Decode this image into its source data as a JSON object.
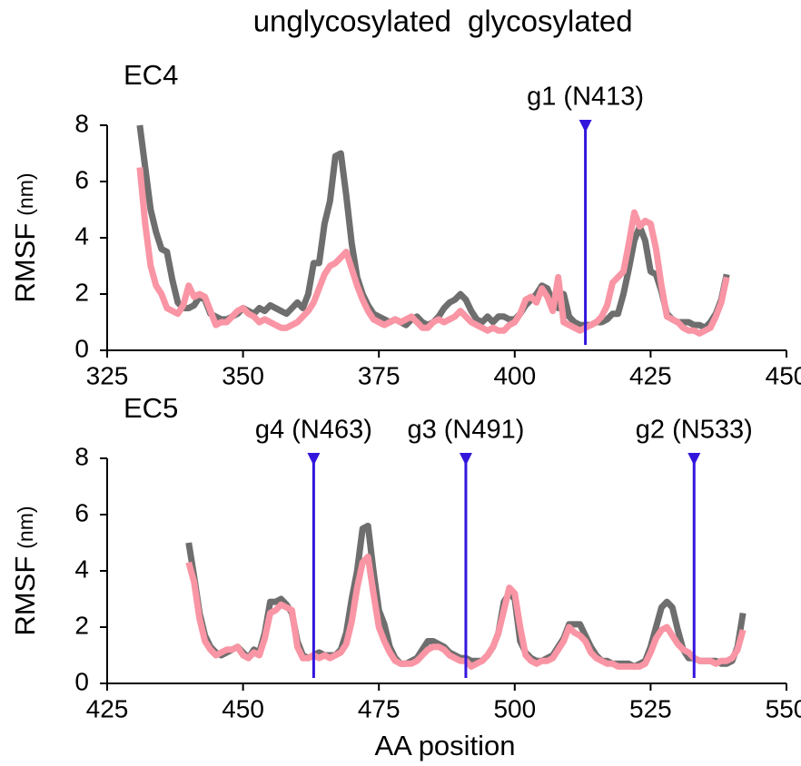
{
  "chart_data": [
    {
      "type": "line",
      "title": "EC4",
      "y_label": "RMSF",
      "y_unit": "(nm)",
      "xlim": [
        325,
        450
      ],
      "xticks": [
        325,
        350,
        375,
        400,
        425,
        450
      ],
      "ylim": [
        0,
        8
      ],
      "yticks": [
        0,
        2,
        4,
        6,
        8
      ],
      "marker_color": "#3316dc",
      "markers": [
        {
          "label": "g1 (N413)",
          "x": 413
        }
      ],
      "x": [
        331,
        332,
        333,
        334,
        335,
        336,
        337,
        338,
        339,
        340,
        341,
        342,
        343,
        344,
        345,
        346,
        347,
        348,
        349,
        350,
        351,
        352,
        353,
        354,
        355,
        356,
        357,
        358,
        359,
        360,
        361,
        362,
        363,
        364,
        365,
        366,
        367,
        368,
        369,
        370,
        371,
        372,
        373,
        374,
        375,
        376,
        377,
        378,
        379,
        380,
        381,
        382,
        383,
        384,
        385,
        386,
        387,
        388,
        389,
        390,
        391,
        392,
        393,
        394,
        395,
        396,
        397,
        398,
        399,
        400,
        401,
        402,
        403,
        404,
        405,
        406,
        407,
        408,
        409,
        410,
        411,
        412,
        413,
        414,
        415,
        416,
        417,
        418,
        419,
        420,
        421,
        422,
        423,
        424,
        425,
        426,
        427,
        428,
        429,
        430,
        431,
        432,
        433,
        434,
        435,
        436,
        437,
        438,
        439
      ],
      "series": [
        {
          "name": "unglycosylated",
          "color": "#f995a4",
          "values": [
            6.5,
            4.5,
            3.0,
            2.3,
            2.0,
            1.5,
            1.4,
            1.3,
            1.6,
            2.3,
            1.9,
            2.0,
            1.9,
            1.4,
            0.9,
            1.0,
            1.0,
            1.2,
            1.4,
            1.5,
            1.3,
            1.2,
            1.0,
            1.1,
            1.0,
            0.9,
            0.8,
            0.8,
            0.9,
            1.0,
            1.2,
            1.4,
            1.7,
            2.2,
            2.7,
            3.0,
            3.1,
            3.3,
            3.5,
            2.9,
            2.3,
            1.8,
            1.4,
            1.1,
            1.0,
            0.9,
            1.0,
            1.1,
            1.0,
            1.1,
            1.2,
            1.0,
            0.8,
            0.8,
            1.0,
            1.1,
            1.0,
            1.1,
            1.2,
            1.4,
            1.2,
            1.0,
            0.9,
            0.8,
            0.7,
            0.8,
            0.7,
            0.7,
            0.9,
            1.0,
            1.3,
            1.8,
            1.9,
            1.7,
            2.2,
            1.9,
            1.4,
            2.6,
            1.0,
            0.9,
            0.8,
            0.7,
            0.8,
            0.9,
            1.0,
            1.2,
            1.6,
            2.4,
            2.6,
            2.8,
            3.8,
            4.9,
            4.4,
            4.6,
            4.5,
            3.6,
            2.3,
            1.2,
            1.1,
            1.0,
            0.8,
            0.7,
            0.7,
            0.6,
            0.7,
            0.8,
            1.2,
            1.7,
            2.6
          ]
        },
        {
          "name": "glycosylated",
          "color": "#6e6e6e",
          "values": [
            8.0,
            6.5,
            5.0,
            4.2,
            3.6,
            3.5,
            2.5,
            1.7,
            1.5,
            1.5,
            1.6,
            1.9,
            1.8,
            1.3,
            1.2,
            1.1,
            1.1,
            1.2,
            1.3,
            1.5,
            1.4,
            1.3,
            1.5,
            1.4,
            1.6,
            1.5,
            1.4,
            1.3,
            1.5,
            1.7,
            1.5,
            2.0,
            3.1,
            3.1,
            4.5,
            5.3,
            6.9,
            7.0,
            5.5,
            3.8,
            2.6,
            2.0,
            1.6,
            1.3,
            1.2,
            1.1,
            1.0,
            1.1,
            1.0,
            0.9,
            1.1,
            1.2,
            1.0,
            0.9,
            1.0,
            1.2,
            1.5,
            1.7,
            1.8,
            2.0,
            1.8,
            1.4,
            1.1,
            1.0,
            1.2,
            1.0,
            1.2,
            1.2,
            1.1,
            1.1,
            1.3,
            1.6,
            1.8,
            2.0,
            2.3,
            2.2,
            1.7,
            1.5,
            2.0,
            1.2,
            1.0,
            0.9,
            0.9,
            0.9,
            1.0,
            1.0,
            1.1,
            1.3,
            1.3,
            2.0,
            2.9,
            3.9,
            4.4,
            3.9,
            2.8,
            2.7,
            2.1,
            1.3,
            1.1,
            1.0,
            1.0,
            1.0,
            0.9,
            0.9,
            0.8,
            1.0,
            1.3,
            1.8,
            2.7
          ]
        }
      ]
    },
    {
      "type": "line",
      "title": "EC5",
      "y_label": "RMSF",
      "y_unit": "(nm)",
      "x_label": "AA position",
      "xlim": [
        425,
        550
      ],
      "xticks": [
        425,
        450,
        475,
        500,
        525,
        550
      ],
      "ylim": [
        0,
        8
      ],
      "yticks": [
        0,
        2,
        4,
        6,
        8
      ],
      "marker_color": "#3316dc",
      "markers": [
        {
          "label": "g4 (N463)",
          "x": 463
        },
        {
          "label": "g3 (N491)",
          "x": 491
        },
        {
          "label": "g2 (N533)",
          "x": 533
        }
      ],
      "x": [
        440,
        441,
        442,
        443,
        444,
        445,
        446,
        447,
        448,
        449,
        450,
        451,
        452,
        453,
        454,
        455,
        456,
        457,
        458,
        459,
        460,
        461,
        462,
        463,
        464,
        465,
        466,
        467,
        468,
        469,
        470,
        471,
        472,
        473,
        474,
        475,
        476,
        477,
        478,
        479,
        480,
        481,
        482,
        483,
        484,
        485,
        486,
        487,
        488,
        489,
        490,
        491,
        492,
        493,
        494,
        495,
        496,
        497,
        498,
        499,
        500,
        501,
        502,
        503,
        504,
        505,
        506,
        507,
        508,
        509,
        510,
        511,
        512,
        513,
        514,
        515,
        516,
        517,
        518,
        519,
        520,
        521,
        522,
        523,
        524,
        525,
        526,
        527,
        528,
        529,
        530,
        531,
        532,
        533,
        534,
        535,
        536,
        537,
        538,
        539,
        540,
        541,
        542
      ],
      "series": [
        {
          "name": "unglycosylated",
          "color": "#f995a4",
          "values": [
            4.3,
            3.6,
            2.3,
            1.5,
            1.2,
            1.0,
            1.1,
            1.2,
            1.2,
            1.3,
            1.0,
            0.9,
            1.1,
            1.0,
            1.6,
            2.5,
            2.6,
            2.8,
            2.7,
            2.6,
            1.3,
            0.9,
            0.9,
            1.0,
            0.9,
            1.0,
            0.9,
            1.0,
            1.1,
            1.4,
            2.2,
            3.4,
            4.3,
            4.5,
            3.2,
            2.0,
            1.5,
            1.1,
            0.8,
            0.7,
            0.7,
            0.7,
            0.8,
            1.0,
            1.2,
            1.3,
            1.3,
            1.2,
            1.0,
            0.9,
            0.8,
            0.8,
            0.6,
            0.7,
            0.8,
            1.0,
            1.3,
            1.8,
            2.6,
            3.4,
            3.2,
            2.0,
            1.0,
            0.8,
            0.7,
            0.8,
            0.8,
            0.9,
            1.2,
            1.5,
            2.0,
            1.8,
            1.7,
            1.5,
            1.1,
            0.9,
            0.8,
            0.7,
            0.7,
            0.6,
            0.6,
            0.6,
            0.6,
            0.6,
            0.7,
            1.1,
            1.6,
            1.9,
            2.0,
            1.7,
            1.4,
            1.2,
            1.1,
            0.9,
            0.8,
            0.8,
            0.8,
            0.7,
            0.8,
            0.8,
            0.9,
            1.2,
            1.9
          ]
        },
        {
          "name": "glycosylated",
          "color": "#6e6e6e",
          "values": [
            5.0,
            3.8,
            2.5,
            1.7,
            1.3,
            1.1,
            1.0,
            1.1,
            1.2,
            1.3,
            1.1,
            0.9,
            1.2,
            1.1,
            1.8,
            2.9,
            2.9,
            3.0,
            2.8,
            2.5,
            1.5,
            1.0,
            0.9,
            1.0,
            1.1,
            1.0,
            1.0,
            1.0,
            1.2,
            1.8,
            3.0,
            4.0,
            5.5,
            5.6,
            4.0,
            2.6,
            2.1,
            1.3,
            0.9,
            0.7,
            0.7,
            0.8,
            0.9,
            1.2,
            1.5,
            1.5,
            1.4,
            1.3,
            1.1,
            1.0,
            0.9,
            0.9,
            0.8,
            0.8,
            0.8,
            1.0,
            1.3,
            1.8,
            2.9,
            3.2,
            3.0,
            1.5,
            1.1,
            0.9,
            0.8,
            0.8,
            0.9,
            1.0,
            1.3,
            1.6,
            2.1,
            2.1,
            2.1,
            1.7,
            1.3,
            1.0,
            0.8,
            0.8,
            0.7,
            0.7,
            0.7,
            0.7,
            0.6,
            0.7,
            0.8,
            1.3,
            2.0,
            2.7,
            2.9,
            2.7,
            1.9,
            1.2,
            0.9,
            0.9,
            0.8,
            0.8,
            0.8,
            0.8,
            0.7,
            0.7,
            0.8,
            1.3,
            2.5
          ]
        }
      ]
    }
  ]
}
